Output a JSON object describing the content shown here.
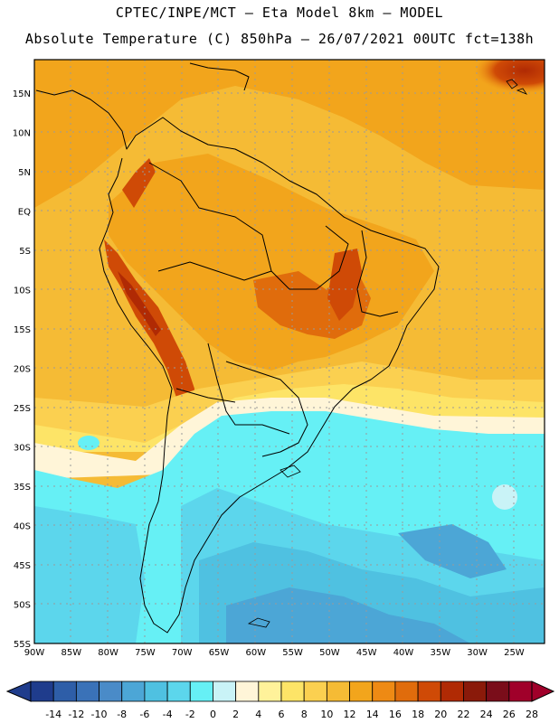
{
  "header": {
    "line1": "CPTEC/INPE/MCT –  Eta Model 8km – MODEL",
    "line2": "Absolute Temperature (C) 850hPa – 26/07/2021 00UTC fct=138h"
  },
  "map": {
    "lat_labels": [
      "15N",
      "10N",
      "5N",
      "EQ",
      "5S",
      "10S",
      "15S",
      "20S",
      "25S",
      "30S",
      "35S",
      "40S",
      "45S",
      "50S",
      "55S"
    ],
    "lon_labels": [
      "90W",
      "85W",
      "80W",
      "75W",
      "70W",
      "65W",
      "60W",
      "55W",
      "50W",
      "45W",
      "40W",
      "35W",
      "30W",
      "25W"
    ],
    "lat_range": [
      -55,
      19
    ],
    "lon_range": [
      -90,
      -21
    ],
    "gridlines": "dotted"
  },
  "colorbar": {
    "labels": [
      "-14",
      "-12",
      "-10",
      "-8",
      "-6",
      "-4",
      "-2",
      "0",
      "2",
      "4",
      "6",
      "8",
      "10",
      "12",
      "14",
      "16",
      "18",
      "20",
      "22",
      "24",
      "26",
      "28"
    ],
    "colors": [
      "#1f3c8c",
      "#2e5ea8",
      "#3a72b8",
      "#4a8bc8",
      "#4ca6d6",
      "#4fc1e1",
      "#5cd6ec",
      "#66f0f5",
      "#c9f3f7",
      "#fff5d8",
      "#fff29a",
      "#fde467",
      "#fbd050",
      "#f5bb35",
      "#f2a51c",
      "#ee8a14",
      "#e06c0c",
      "#cf4a06",
      "#b02a04",
      "#8a1a0a",
      "#7a0d1a",
      "#a0002a"
    ]
  }
}
